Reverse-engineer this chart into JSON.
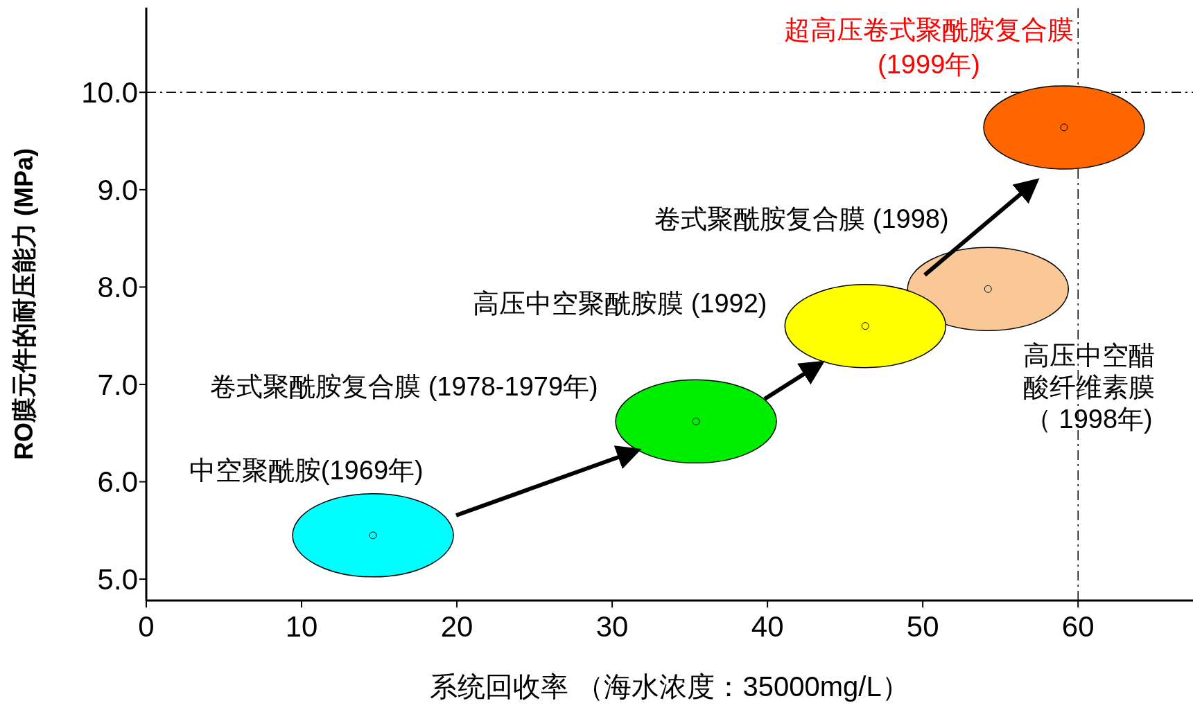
{
  "chart_data": {
    "type": "scatter",
    "title": "超高压卷式聚酰胺复合膜(1999年)",
    "xlabel": "系统回收率 （海水浓度：35000mg/L）",
    "ylabel": "RO膜元件的耐压能力 (MPa)",
    "x": [
      14.6,
      35.4,
      54.2,
      46.3,
      59.1
    ],
    "values": [
      5.45,
      6.62,
      7.98,
      7.6,
      9.64
    ],
    "colors": [
      "#00ffff",
      "#00ee00",
      "#fac796",
      "#ffff00",
      "#ff6600"
    ],
    "xlim": [
      0,
      67.4
    ],
    "xticks": [
      0,
      10,
      20,
      30,
      40,
      50,
      60
    ],
    "ylim": [
      4.78,
      10.87
    ],
    "yticks": [
      {
        "value": 5,
        "label": "5.0"
      },
      {
        "value": 6,
        "label": "6.0"
      },
      {
        "value": 7,
        "label": "7.0"
      },
      {
        "value": 8,
        "label": "8.0"
      },
      {
        "value": 9,
        "label": "9.0"
      },
      {
        "value": 10,
        "label": "10.0"
      }
    ],
    "ref_lines": [
      {
        "axis": "y",
        "value": 10,
        "line_style": "dashed",
        "color": "#000000"
      },
      {
        "axis": "x",
        "value": 60,
        "line_style": "dashed",
        "color": "#000000"
      }
    ],
    "annotations": [
      "中空聚酰胺(1969年)",
      "卷式聚酰胺复合膜 (1978-1979年)",
      "高压中空聚酰胺膜 (1992)",
      "卷式聚酰胺复合膜 (1998)",
      "高压中空醋酸纤维素膜（ 1998年)"
    ],
    "marker": "circle"
  }
}
